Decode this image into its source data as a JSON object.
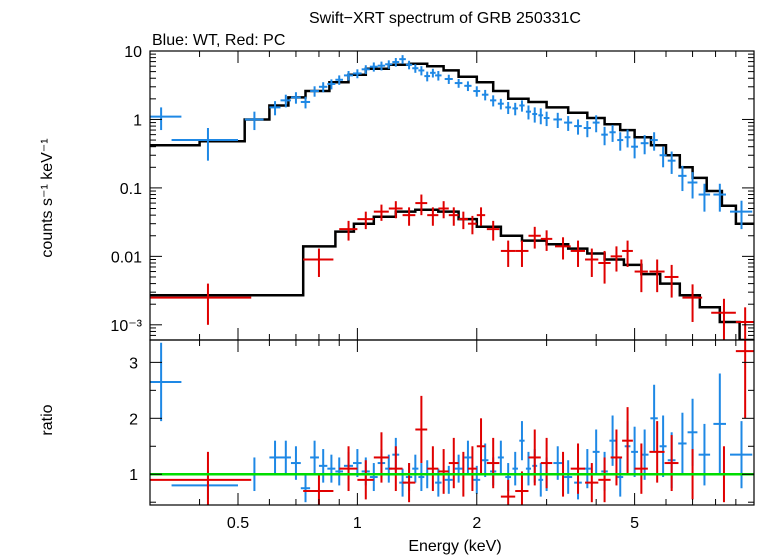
{
  "chart_data": [
    {
      "type": "scatter",
      "title": "Swift−XRT spectrum of GRB 250331C",
      "subtitle": "Blue: WT, Red: PC",
      "xlabel": "Energy (keV)",
      "ylabel": "counts s⁻¹ keV⁻¹",
      "xscale": "log",
      "yscale": "log",
      "xlim": [
        0.3,
        10
      ],
      "ylim": [
        0.0006,
        10
      ],
      "yticks": [
        0.001,
        0.01,
        0.1,
        1,
        10
      ],
      "yticklabels": [
        "10⁻³",
        "0.01",
        "0.1",
        "1",
        "10"
      ],
      "colors": {
        "wt": "#1e88e5",
        "pc": "#e00000",
        "model": "#000000"
      },
      "series": [
        {
          "name": "WT",
          "x": [
            0.32,
            0.42,
            0.55,
            0.62,
            0.66,
            0.7,
            0.74,
            0.78,
            0.82,
            0.86,
            0.9,
            0.95,
            1.0,
            1.05,
            1.1,
            1.15,
            1.2,
            1.25,
            1.3,
            1.35,
            1.4,
            1.45,
            1.5,
            1.55,
            1.6,
            1.7,
            1.8,
            1.9,
            2.0,
            2.1,
            2.2,
            2.3,
            2.4,
            2.5,
            2.6,
            2.7,
            2.8,
            2.9,
            3.0,
            3.2,
            3.4,
            3.6,
            3.8,
            4.0,
            4.2,
            4.4,
            4.6,
            4.8,
            5.0,
            5.3,
            5.6,
            5.9,
            6.2,
            6.6,
            7.0,
            7.5,
            8.2,
            9.3
          ],
          "y": [
            1.1,
            0.5,
            1.0,
            1.5,
            1.9,
            2.1,
            1.8,
            2.6,
            3.0,
            3.3,
            3.8,
            4.4,
            4.7,
            5.4,
            5.9,
            6.1,
            6.4,
            6.9,
            7.6,
            6.3,
            5.6,
            5.2,
            4.3,
            4.8,
            4.4,
            3.9,
            3.4,
            3.1,
            2.6,
            2.3,
            1.9,
            1.7,
            1.5,
            1.45,
            1.6,
            1.3,
            1.2,
            1.15,
            1.05,
            1.0,
            0.9,
            0.8,
            0.75,
            0.9,
            0.6,
            0.65,
            0.5,
            0.55,
            0.4,
            0.45,
            0.5,
            0.3,
            0.25,
            0.15,
            0.12,
            0.08,
            0.08,
            0.045
          ],
          "xerr": [
            0.04,
            0.08,
            0.03,
            0.02,
            0.02,
            0.02,
            0.02,
            0.02,
            0.02,
            0.02,
            0.02,
            0.025,
            0.025,
            0.025,
            0.025,
            0.025,
            0.025,
            0.025,
            0.025,
            0.025,
            0.025,
            0.025,
            0.025,
            0.025,
            0.03,
            0.04,
            0.04,
            0.04,
            0.04,
            0.04,
            0.04,
            0.04,
            0.04,
            0.04,
            0.04,
            0.04,
            0.04,
            0.04,
            0.05,
            0.08,
            0.08,
            0.08,
            0.08,
            0.08,
            0.08,
            0.08,
            0.08,
            0.08,
            0.1,
            0.12,
            0.12,
            0.12,
            0.14,
            0.16,
            0.2,
            0.25,
            0.3,
            0.6
          ],
          "yerr": [
            0.4,
            0.25,
            0.3,
            0.35,
            0.4,
            0.4,
            0.35,
            0.45,
            0.5,
            0.55,
            0.6,
            0.7,
            0.7,
            0.8,
            0.9,
            0.9,
            0.9,
            1.0,
            1.1,
            0.9,
            0.8,
            0.8,
            0.7,
            0.7,
            0.7,
            0.6,
            0.5,
            0.5,
            0.45,
            0.4,
            0.35,
            0.3,
            0.3,
            0.3,
            0.3,
            0.3,
            0.3,
            0.3,
            0.25,
            0.25,
            0.22,
            0.2,
            0.2,
            0.25,
            0.18,
            0.18,
            0.15,
            0.16,
            0.13,
            0.14,
            0.15,
            0.1,
            0.09,
            0.06,
            0.05,
            0.035,
            0.035,
            0.02
          ]
        },
        {
          "name": "PC",
          "x": [
            0.42,
            0.8,
            0.95,
            1.05,
            1.15,
            1.25,
            1.35,
            1.45,
            1.55,
            1.65,
            1.75,
            1.85,
            1.95,
            2.05,
            2.2,
            2.4,
            2.6,
            2.8,
            3.0,
            3.3,
            3.6,
            3.9,
            4.2,
            4.5,
            4.8,
            5.2,
            5.7,
            6.2,
            7.0,
            8.4,
            9.5
          ],
          "y": [
            0.0025,
            0.009,
            0.025,
            0.035,
            0.045,
            0.05,
            0.04,
            0.06,
            0.04,
            0.05,
            0.04,
            0.035,
            0.03,
            0.04,
            0.025,
            0.012,
            0.012,
            0.02,
            0.018,
            0.014,
            0.012,
            0.009,
            0.008,
            0.01,
            0.012,
            0.006,
            0.006,
            0.005,
            0.0025,
            0.0015,
            0.0011
          ],
          "xerr": [
            0.12,
            0.07,
            0.05,
            0.05,
            0.05,
            0.05,
            0.05,
            0.05,
            0.05,
            0.05,
            0.05,
            0.05,
            0.05,
            0.05,
            0.08,
            0.1,
            0.1,
            0.1,
            0.1,
            0.15,
            0.15,
            0.15,
            0.15,
            0.15,
            0.15,
            0.2,
            0.25,
            0.25,
            0.4,
            0.6,
            0.5
          ],
          "yerr": [
            0.0015,
            0.004,
            0.008,
            0.01,
            0.012,
            0.014,
            0.012,
            0.02,
            0.012,
            0.014,
            0.012,
            0.01,
            0.009,
            0.012,
            0.008,
            0.005,
            0.005,
            0.007,
            0.006,
            0.005,
            0.005,
            0.004,
            0.004,
            0.004,
            0.005,
            0.003,
            0.003,
            0.0025,
            0.0014,
            0.0009,
            0.0007
          ]
        }
      ],
      "models": [
        {
          "name": "WT model",
          "steps": [
            [
              0.3,
              0.42
            ],
            [
              0.4,
              0.48
            ],
            [
              0.52,
              1.0
            ],
            [
              0.6,
              1.6
            ],
            [
              0.67,
              2.1
            ],
            [
              0.74,
              2.6
            ],
            [
              0.85,
              3.5
            ],
            [
              0.95,
              4.5
            ],
            [
              1.05,
              5.5
            ],
            [
              1.2,
              6.3
            ],
            [
              1.35,
              6.5
            ],
            [
              1.5,
              6.0
            ],
            [
              1.65,
              5.2
            ],
            [
              1.8,
              4.2
            ],
            [
              2.0,
              3.5
            ],
            [
              2.2,
              2.6
            ],
            [
              2.4,
              2.0
            ],
            [
              2.7,
              1.8
            ],
            [
              3.0,
              1.5
            ],
            [
              3.4,
              1.25
            ],
            [
              3.8,
              1.05
            ],
            [
              4.2,
              0.85
            ],
            [
              4.6,
              0.7
            ],
            [
              5.0,
              0.55
            ],
            [
              5.5,
              0.42
            ],
            [
              6.0,
              0.3
            ],
            [
              6.5,
              0.2
            ],
            [
              7.0,
              0.14
            ],
            [
              7.6,
              0.09
            ],
            [
              8.3,
              0.055
            ],
            [
              9.0,
              0.03
            ],
            [
              10.0,
              0.03
            ]
          ]
        },
        {
          "name": "PC model",
          "steps": [
            [
              0.3,
              0.0027
            ],
            [
              0.73,
              0.014
            ],
            [
              0.88,
              0.023
            ],
            [
              0.98,
              0.03
            ],
            [
              1.1,
              0.038
            ],
            [
              1.25,
              0.045
            ],
            [
              1.4,
              0.048
            ],
            [
              1.6,
              0.045
            ],
            [
              1.8,
              0.035
            ],
            [
              2.0,
              0.027
            ],
            [
              2.3,
              0.02
            ],
            [
              2.6,
              0.017
            ],
            [
              3.0,
              0.015
            ],
            [
              3.4,
              0.013
            ],
            [
              3.8,
              0.011
            ],
            [
              4.2,
              0.009
            ],
            [
              4.7,
              0.0075
            ],
            [
              5.2,
              0.0055
            ],
            [
              5.8,
              0.004
            ],
            [
              6.5,
              0.0027
            ],
            [
              7.3,
              0.0018
            ],
            [
              8.2,
              0.0011
            ],
            [
              9.2,
              0.0006
            ],
            [
              10.0,
              0.0006
            ]
          ]
        }
      ]
    },
    {
      "type": "scatter",
      "xlabel": "Energy (keV)",
      "ylabel": "ratio",
      "xscale": "log",
      "xlim": [
        0.3,
        10
      ],
      "ylim": [
        0.45,
        3.4
      ],
      "xticks": [
        0.5,
        1,
        2,
        5
      ],
      "xticklabels": [
        "0.5",
        "1",
        "2",
        "5"
      ],
      "yticks": [
        1,
        2,
        3
      ],
      "yticklabels": [
        "1",
        "2",
        "3"
      ],
      "reference_line": 1,
      "colors": {
        "wt": "#1e88e5",
        "pc": "#e00000",
        "reference": "#00dd00"
      },
      "series": [
        {
          "name": "WT",
          "x": [
            0.32,
            0.42,
            0.55,
            0.62,
            0.66,
            0.7,
            0.74,
            0.78,
            0.82,
            0.86,
            0.9,
            0.95,
            1.0,
            1.05,
            1.1,
            1.15,
            1.2,
            1.25,
            1.3,
            1.35,
            1.4,
            1.45,
            1.5,
            1.6,
            1.7,
            1.8,
            1.9,
            2.0,
            2.1,
            2.2,
            2.3,
            2.4,
            2.5,
            2.6,
            2.7,
            2.8,
            2.9,
            3.0,
            3.2,
            3.4,
            3.6,
            3.8,
            4.0,
            4.2,
            4.4,
            4.6,
            4.8,
            5.0,
            5.3,
            5.6,
            5.9,
            6.2,
            6.6,
            7.0,
            7.5,
            8.2,
            9.3
          ],
          "y": [
            2.65,
            0.8,
            1.0,
            1.3,
            1.3,
            1.2,
            0.75,
            1.3,
            1.15,
            1.1,
            1.05,
            1.15,
            1.2,
            1.05,
            0.95,
            1.2,
            1.1,
            1.35,
            0.85,
            0.95,
            1.1,
            0.95,
            1.0,
            0.85,
            0.9,
            1.1,
            1.3,
            0.9,
            1.25,
            1.05,
            1.3,
            0.95,
            1.1,
            1.6,
            1.1,
            1.15,
            0.9,
            1.0,
            1.2,
            0.95,
            0.85,
            1.1,
            1.4,
            1.05,
            1.6,
            0.95,
            1.5,
            1.4,
            1.35,
            2.0,
            1.5,
            1.25,
            1.55,
            1.75,
            1.35,
            1.9,
            1.35
          ],
          "xerr": [
            0.04,
            0.08,
            0.03,
            0.02,
            0.02,
            0.02,
            0.02,
            0.02,
            0.02,
            0.02,
            0.02,
            0.025,
            0.025,
            0.025,
            0.025,
            0.025,
            0.025,
            0.025,
            0.025,
            0.025,
            0.025,
            0.025,
            0.025,
            0.03,
            0.04,
            0.04,
            0.04,
            0.04,
            0.04,
            0.04,
            0.04,
            0.04,
            0.04,
            0.04,
            0.04,
            0.04,
            0.04,
            0.05,
            0.08,
            0.08,
            0.08,
            0.08,
            0.08,
            0.08,
            0.08,
            0.08,
            0.08,
            0.1,
            0.12,
            0.12,
            0.12,
            0.14,
            0.16,
            0.2,
            0.25,
            0.3,
            0.6
          ],
          "yerr": [
            0.7,
            0.25,
            0.3,
            0.3,
            0.3,
            0.3,
            0.25,
            0.3,
            0.3,
            0.25,
            0.25,
            0.25,
            0.25,
            0.25,
            0.25,
            0.25,
            0.25,
            0.3,
            0.25,
            0.25,
            0.25,
            0.25,
            0.25,
            0.25,
            0.25,
            0.25,
            0.3,
            0.25,
            0.3,
            0.25,
            0.3,
            0.25,
            0.3,
            0.35,
            0.3,
            0.3,
            0.3,
            0.3,
            0.3,
            0.3,
            0.3,
            0.35,
            0.4,
            0.35,
            0.45,
            0.35,
            0.45,
            0.45,
            0.45,
            0.6,
            0.55,
            0.5,
            0.55,
            0.6,
            0.55,
            0.9,
            0.6
          ]
        },
        {
          "name": "PC",
          "x": [
            0.42,
            0.8,
            0.95,
            1.05,
            1.15,
            1.25,
            1.35,
            1.45,
            1.55,
            1.65,
            1.75,
            1.85,
            1.95,
            2.05,
            2.2,
            2.4,
            2.6,
            2.8,
            3.0,
            3.3,
            3.6,
            3.9,
            4.2,
            4.5,
            4.8,
            5.2,
            5.7,
            6.2,
            7.0,
            8.4,
            9.5
          ],
          "y": [
            0.9,
            0.7,
            1.1,
            0.9,
            1.3,
            1.1,
            0.85,
            1.8,
            1.1,
            1.05,
            1.2,
            1.0,
            1.1,
            1.5,
            1.2,
            0.6,
            0.7,
            1.3,
            1.2,
            1.0,
            1.1,
            0.85,
            0.9,
            1.3,
            1.6,
            1.1,
            1.4,
            1.2,
            1.0,
            1.0,
            3.2
          ],
          "xerr": [
            0.12,
            0.07,
            0.05,
            0.05,
            0.05,
            0.05,
            0.05,
            0.05,
            0.05,
            0.05,
            0.05,
            0.05,
            0.05,
            0.05,
            0.08,
            0.1,
            0.1,
            0.1,
            0.1,
            0.15,
            0.15,
            0.15,
            0.15,
            0.15,
            0.15,
            0.2,
            0.25,
            0.25,
            0.4,
            0.6,
            0.5
          ],
          "yerr": [
            0.5,
            0.3,
            0.4,
            0.35,
            0.45,
            0.4,
            0.35,
            0.6,
            0.4,
            0.4,
            0.45,
            0.4,
            0.4,
            0.5,
            0.45,
            0.3,
            0.35,
            0.5,
            0.45,
            0.4,
            0.45,
            0.35,
            0.4,
            0.5,
            0.6,
            0.45,
            0.55,
            0.5,
            0.45,
            0.5,
            1.2
          ]
        }
      ]
    }
  ]
}
